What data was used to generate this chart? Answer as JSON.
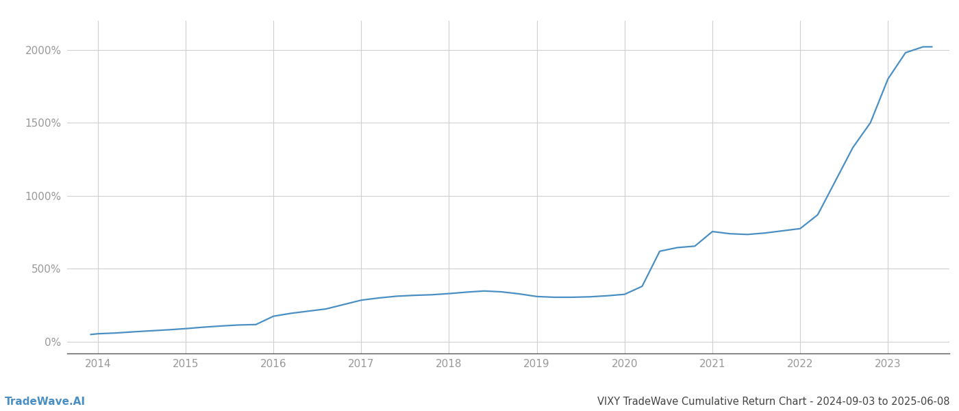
{
  "title": "VIXY TradeWave Cumulative Return Chart - 2024-09-03 to 2025-06-08",
  "watermark": "TradeWave.AI",
  "line_color": "#4a8fc4",
  "background_color": "#ffffff",
  "grid_color": "#d0d0d0",
  "x_years": [
    2014,
    2015,
    2016,
    2017,
    2018,
    2019,
    2020,
    2021,
    2022,
    2023
  ],
  "x_values": [
    2013.92,
    2014.0,
    2014.2,
    2014.4,
    2014.6,
    2014.8,
    2015.0,
    2015.2,
    2015.4,
    2015.6,
    2015.8,
    2016.0,
    2016.2,
    2016.4,
    2016.6,
    2016.8,
    2017.0,
    2017.2,
    2017.4,
    2017.6,
    2017.8,
    2018.0,
    2018.2,
    2018.4,
    2018.6,
    2018.8,
    2019.0,
    2019.2,
    2019.4,
    2019.6,
    2019.8,
    2020.0,
    2020.2,
    2020.4,
    2020.6,
    2020.8,
    2021.0,
    2021.2,
    2021.4,
    2021.6,
    2021.8,
    2022.0,
    2022.2,
    2022.4,
    2022.6,
    2022.8,
    2023.0,
    2023.2,
    2023.4,
    2023.5
  ],
  "y_values": [
    50,
    55,
    60,
    68,
    75,
    82,
    90,
    100,
    108,
    115,
    118,
    175,
    195,
    210,
    225,
    255,
    285,
    300,
    312,
    318,
    322,
    330,
    340,
    348,
    342,
    328,
    310,
    305,
    305,
    308,
    315,
    325,
    380,
    620,
    645,
    655,
    755,
    740,
    735,
    745,
    760,
    775,
    870,
    1100,
    1330,
    1500,
    1800,
    1980,
    2020,
    2020
  ],
  "ylim": [
    -80,
    2200
  ],
  "xlim": [
    2013.65,
    2023.7
  ],
  "yticks": [
    0,
    500,
    1000,
    1500,
    2000
  ],
  "ytick_labels": [
    "0%",
    "500%",
    "1000%",
    "1500%",
    "2000%"
  ],
  "title_fontsize": 10.5,
  "watermark_fontsize": 11,
  "tick_fontsize": 11,
  "tick_color": "#999999",
  "line_width": 1.6
}
